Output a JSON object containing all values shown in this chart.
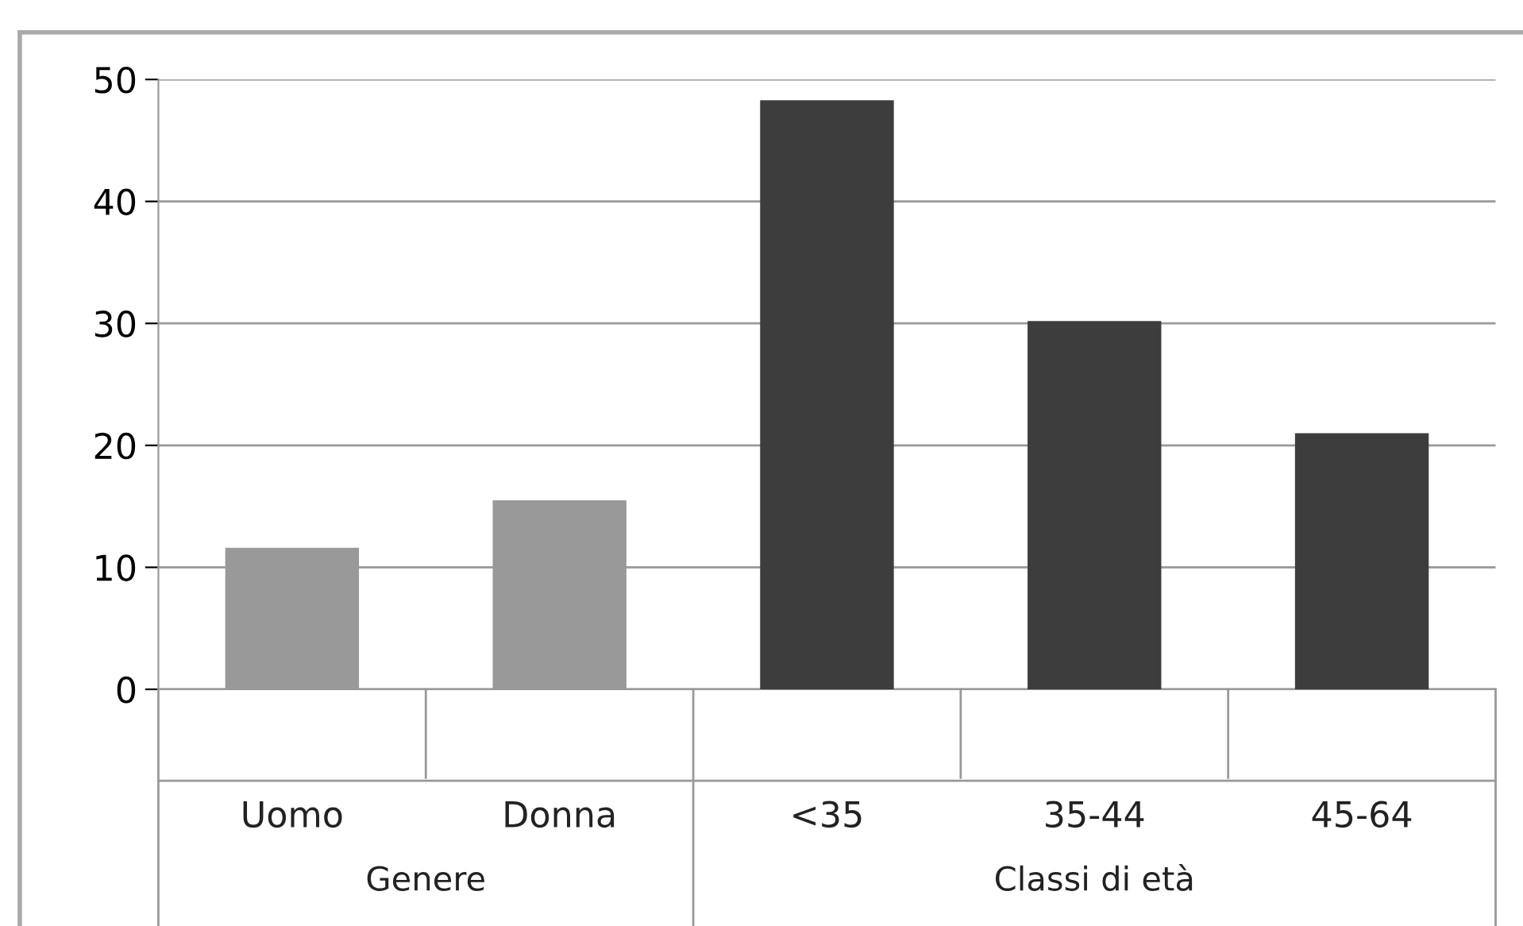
{
  "chart_data": {
    "type": "bar",
    "categories": [
      "Uomo",
      "Donna",
      "<35",
      "35-44",
      "45-64"
    ],
    "values": [
      11.6,
      15.5,
      48.3,
      30.2,
      21.0
    ],
    "colors": [
      "#999999",
      "#999999",
      "#3d3d3d",
      "#3d3d3d",
      "#3d3d3d"
    ],
    "ylim": [
      0,
      50
    ],
    "yticks": [
      0,
      10,
      20,
      30,
      40,
      50
    ],
    "grid": "y",
    "annotations": [
      "Genere",
      "Classi di età"
    ]
  }
}
